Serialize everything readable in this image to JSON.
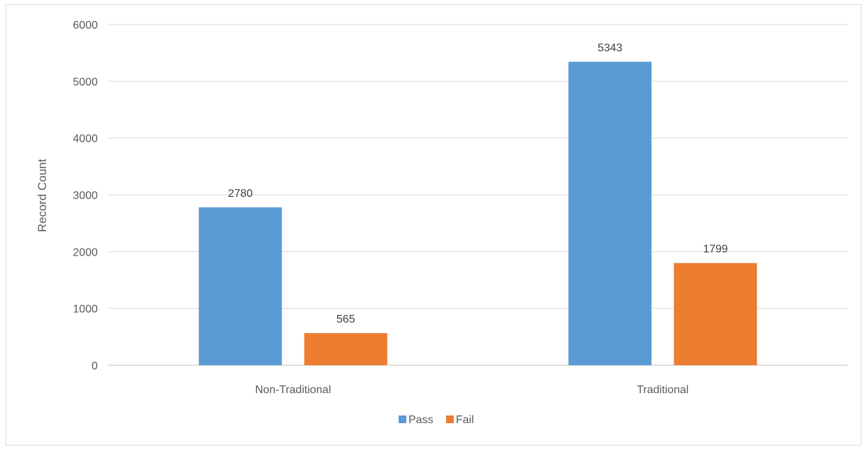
{
  "chart_data": {
    "type": "bar",
    "title": "",
    "xlabel": "",
    "ylabel": "Record Count",
    "categories": [
      "Non-Traditional",
      "Traditional"
    ],
    "series": [
      {
        "name": "Pass",
        "values": [
          2780,
          5343
        ],
        "color": "#5b9bd5"
      },
      {
        "name": "Fail",
        "values": [
          565,
          1799
        ],
        "color": "#ed7d31"
      }
    ],
    "ylim": [
      0,
      6000
    ],
    "yticks": [
      0,
      1000,
      2000,
      3000,
      4000,
      5000,
      6000
    ],
    "grid": true,
    "legend_position": "bottom"
  }
}
